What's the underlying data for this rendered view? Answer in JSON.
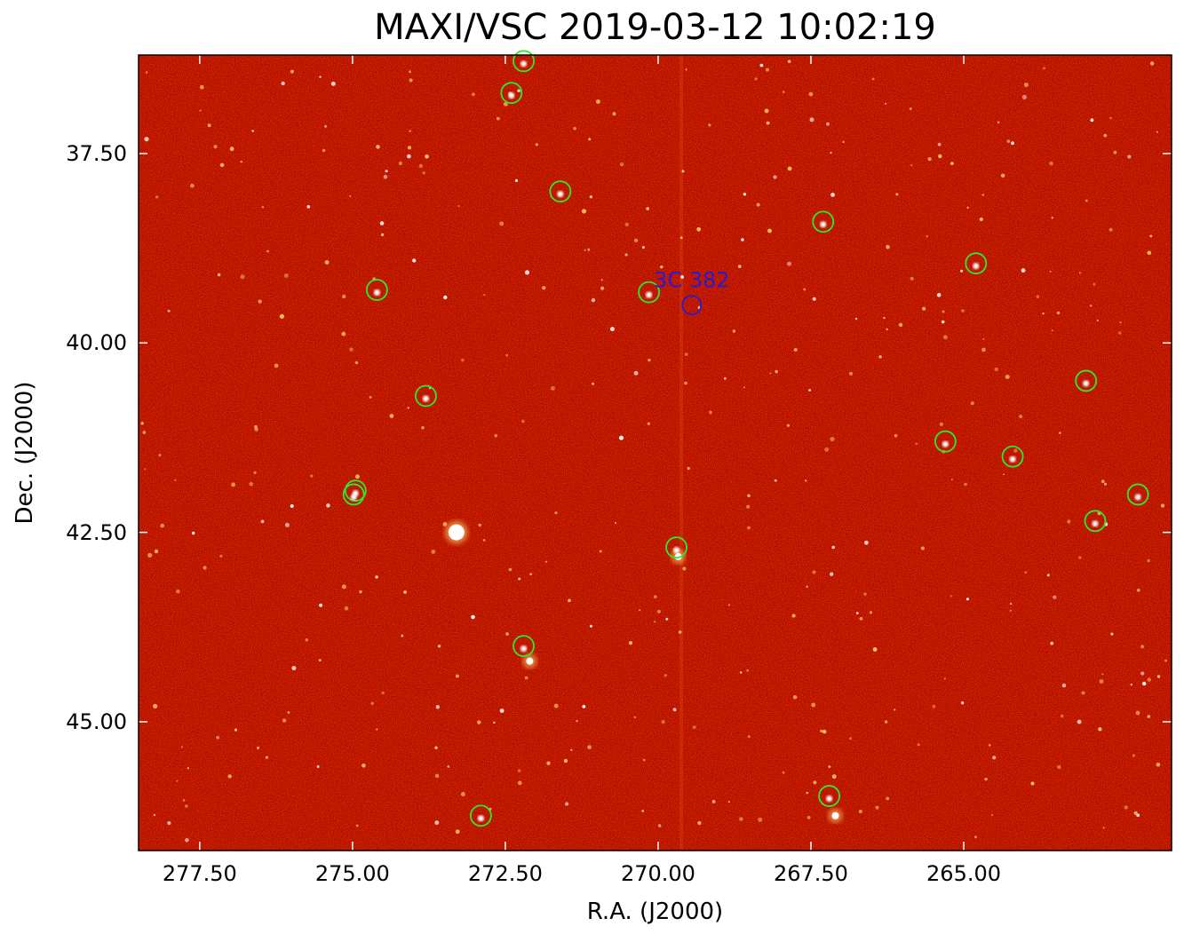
{
  "title": "MAXI/VSC 2019-03-12 10:02:19",
  "xlabel": "R.A. (J2000)",
  "ylabel": "Dec. (J2000)",
  "colors": {
    "background_dark": "#b00a00",
    "background_mid": "#c91500",
    "source_hot": "#ffffff",
    "source_warm": "#ffcc66",
    "catalog_marker": "#2ee82e",
    "target_marker": "#2a1ad4"
  },
  "chart_data": {
    "type": "sky-image",
    "xlim": [
      278.5,
      261.6
    ],
    "ylim": [
      46.7,
      36.2
    ],
    "x_ticks": [
      "277.50",
      "275.00",
      "272.50",
      "270.00",
      "267.50",
      "265.00"
    ],
    "x_tick_values": [
      277.5,
      275.0,
      272.5,
      270.0,
      267.5,
      265.0
    ],
    "y_ticks": [
      "37.50",
      "40.00",
      "42.50",
      "45.00"
    ],
    "y_tick_values": [
      37.5,
      40.0,
      42.5,
      45.0
    ],
    "target": {
      "name": "3C 382",
      "ra": 269.45,
      "dec": 39.5
    },
    "catalog_sources": [
      {
        "ra": 272.2,
        "dec": 36.28
      },
      {
        "ra": 272.4,
        "dec": 36.7
      },
      {
        "ra": 271.6,
        "dec": 38.0
      },
      {
        "ra": 267.3,
        "dec": 38.4
      },
      {
        "ra": 264.8,
        "dec": 38.95
      },
      {
        "ra": 274.6,
        "dec": 39.3
      },
      {
        "ra": 270.15,
        "dec": 39.33
      },
      {
        "ra": 273.8,
        "dec": 40.7
      },
      {
        "ra": 263.0,
        "dec": 40.5
      },
      {
        "ra": 265.3,
        "dec": 41.3
      },
      {
        "ra": 264.2,
        "dec": 41.5
      },
      {
        "ra": 274.95,
        "dec": 41.95
      },
      {
        "ra": 274.98,
        "dec": 42.0
      },
      {
        "ra": 262.15,
        "dec": 42.0
      },
      {
        "ra": 262.85,
        "dec": 42.35
      },
      {
        "ra": 269.7,
        "dec": 42.7
      },
      {
        "ra": 272.2,
        "dec": 44.0
      },
      {
        "ra": 267.2,
        "dec": 45.98
      },
      {
        "ra": 272.9,
        "dec": 46.24
      }
    ],
    "bright_sources": [
      {
        "ra": 273.3,
        "dec": 42.5,
        "size": "large"
      },
      {
        "ra": 272.1,
        "dec": 44.2,
        "size": "small"
      },
      {
        "ra": 267.1,
        "dec": 46.24,
        "size": "small"
      },
      {
        "ra": 269.67,
        "dec": 42.82,
        "size": "small"
      }
    ]
  }
}
